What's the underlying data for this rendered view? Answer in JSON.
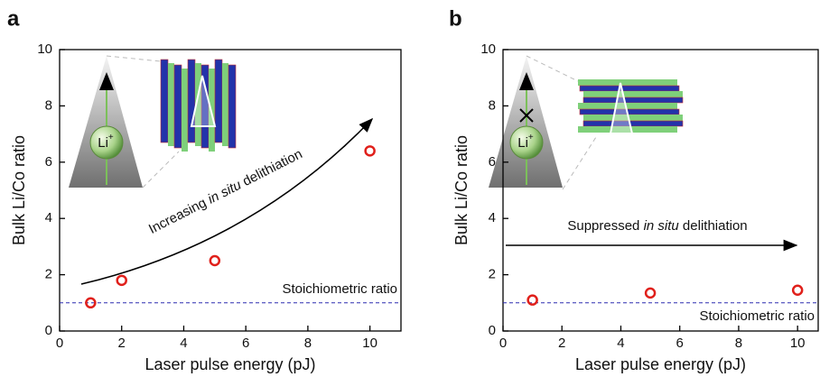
{
  "chart_data": [
    {
      "type": "scatter",
      "panel": "a",
      "x": [
        1,
        2,
        5,
        10
      ],
      "values": [
        1.0,
        1.8,
        2.5,
        6.4
      ],
      "color": "#e0201b",
      "xlim": [
        0,
        11
      ],
      "ylim": [
        0,
        10
      ],
      "xticks": [
        0,
        2,
        4,
        6,
        8,
        10
      ],
      "yticks": [
        0,
        2,
        4,
        6,
        8,
        10
      ],
      "xlabel": "Laser pulse energy (pJ)",
      "ylabel": "Bulk Li/Co ratio",
      "reference_line": {
        "y": 1,
        "label": "Stoichiometric ratio",
        "color": "#2b2bb0"
      },
      "annotation": [
        {
          "text": "Increasing "
        },
        {
          "text": "in situ",
          "style": "italic"
        },
        {
          "text": " delithiation"
        }
      ],
      "ion_label": "Li",
      "ion_charge": "+"
    },
    {
      "type": "scatter",
      "panel": "b",
      "x": [
        1,
        5,
        10
      ],
      "values": [
        1.1,
        1.35,
        1.45
      ],
      "color": "#e0201b",
      "xlim": [
        0,
        10.7
      ],
      "ylim": [
        0,
        10
      ],
      "xticks": [
        0,
        2,
        4,
        6,
        8,
        10
      ],
      "yticks": [
        0,
        2,
        4,
        6,
        8,
        10
      ],
      "xlabel": "Laser pulse energy (pJ)",
      "ylabel": "Bulk Li/Co ratio",
      "reference_line": {
        "y": 1,
        "label": "Stoichiometric ratio",
        "color": "#2b2bb0"
      },
      "annotation": [
        {
          "text": "Suppressed "
        },
        {
          "text": "in situ",
          "style": "italic"
        },
        {
          "text": " delithiation"
        }
      ],
      "ion_label": "Li",
      "ion_charge": "+"
    }
  ]
}
